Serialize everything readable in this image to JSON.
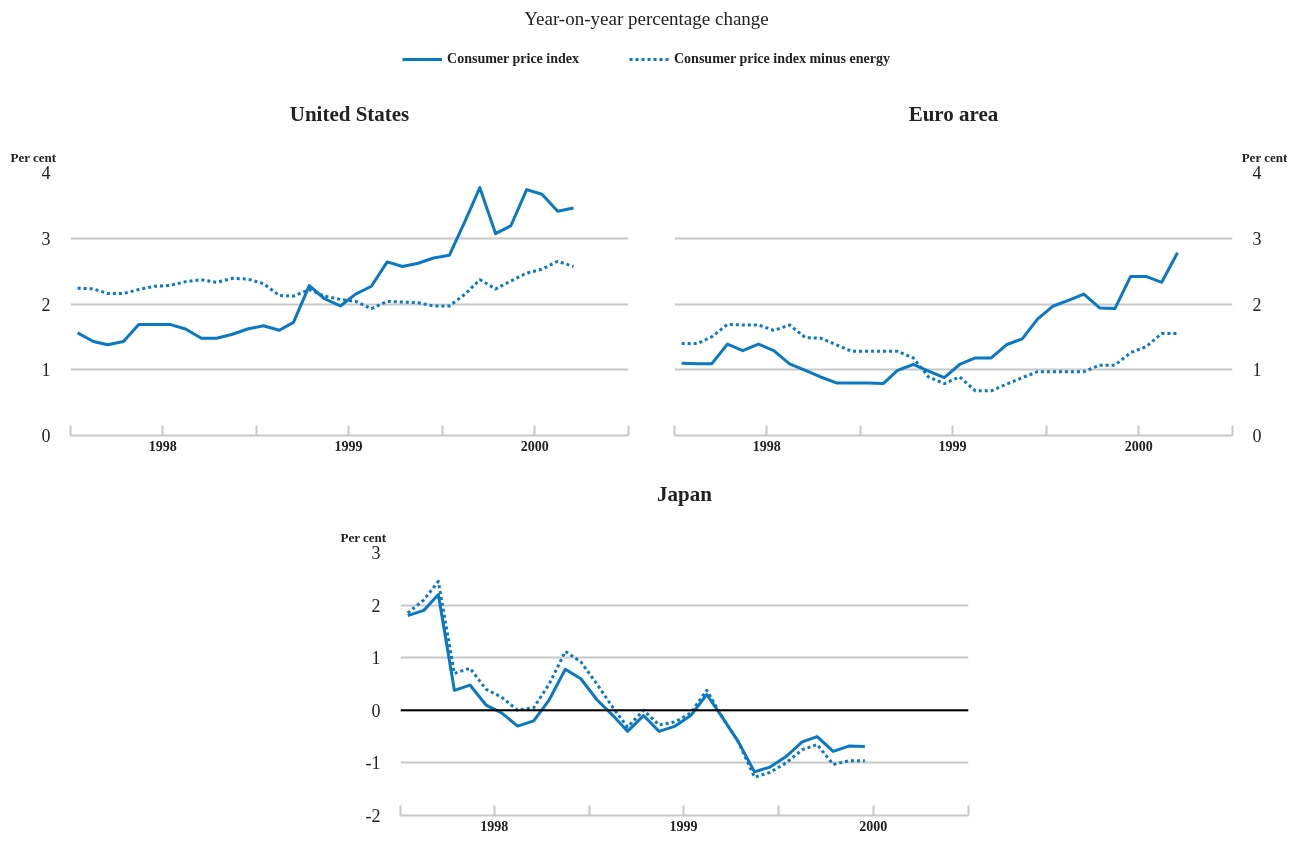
{
  "chart_data": [
    {
      "type": "line",
      "title": "United States",
      "subtitle": "Year-on-year percentage change",
      "ylabel": "Per cent",
      "legend": "top",
      "grid": "y",
      "x": [
        "1998-01-15",
        "1998-02-15",
        "1998-03-15",
        "1998-04-15",
        "1998-05-15",
        "1998-06-15",
        "1998-07-15",
        "1998-08-15",
        "1998-09-15",
        "1998-10-15",
        "1998-11-15",
        "1998-12-15",
        "1999-01-15",
        "1999-02-15",
        "1999-03-15",
        "1999-04-15",
        "1999-05-15",
        "1999-06-15",
        "1999-07-15",
        "1999-08-15",
        "1999-09-15",
        "1999-10-15",
        "1999-11-15",
        "1999-12-15",
        "2000-01-15",
        "2000-02-15",
        "2000-03-15",
        "2000-04-15",
        "2000-05-15",
        "2000-06-15",
        "2000-07-15",
        "2000-08-15",
        "2000-09-15"
      ],
      "xlim": [
        "1998-01-01",
        "2001-01-01"
      ],
      "xticks": [
        {
          "value": "1998-01-01",
          "label": null
        },
        {
          "value": "1998-07-01",
          "label": "1998"
        },
        {
          "value": "1999-01-01",
          "label": null
        },
        {
          "value": "1999-07-01",
          "label": "1999"
        },
        {
          "value": "2000-01-01",
          "label": null
        },
        {
          "value": "2000-07-01",
          "label": "2000"
        },
        {
          "value": "2001-01-01",
          "label": null
        }
      ],
      "ylim": [
        0,
        4
      ],
      "yticks": [
        0,
        1,
        2,
        3,
        4
      ],
      "series": [
        {
          "name": "Consumer price index",
          "color": "#0a78c2",
          "line_style": "solid",
          "values": [
            1.56,
            1.43,
            1.38,
            1.43,
            1.69,
            1.69,
            1.69,
            1.62,
            1.48,
            1.48,
            1.54,
            1.62,
            1.67,
            1.6,
            1.72,
            2.28,
            2.08,
            1.97,
            2.15,
            2.27,
            2.64,
            2.57,
            2.62,
            2.7,
            2.74,
            3.26,
            3.77,
            3.07,
            3.19,
            3.74,
            3.67,
            3.41,
            3.46
          ]
        },
        {
          "name": "Consumer price index minus energy",
          "color": "#0a78c2",
          "line_style": "dotted",
          "values": [
            2.24,
            2.23,
            2.16,
            2.16,
            2.22,
            2.27,
            2.28,
            2.34,
            2.37,
            2.33,
            2.39,
            2.38,
            2.31,
            2.13,
            2.12,
            2.22,
            2.12,
            2.07,
            2.04,
            1.93,
            2.04,
            2.03,
            2.02,
            1.97,
            1.97,
            2.15,
            2.37,
            2.23,
            2.35,
            2.47,
            2.53,
            2.65,
            2.57
          ]
        }
      ]
    },
    {
      "type": "line",
      "title": "Euro area",
      "y2label": "Per cent",
      "grid": "y",
      "x": [
        "1998-01-15",
        "1998-02-15",
        "1998-03-15",
        "1998-04-15",
        "1998-05-15",
        "1998-06-15",
        "1998-07-15",
        "1998-08-15",
        "1998-09-15",
        "1998-10-15",
        "1998-11-15",
        "1998-12-15",
        "1999-01-15",
        "1999-02-15",
        "1999-03-15",
        "1999-04-15",
        "1999-05-15",
        "1999-06-15",
        "1999-07-15",
        "1999-08-15",
        "1999-09-15",
        "1999-10-15",
        "1999-11-15",
        "1999-12-15",
        "2000-01-15",
        "2000-02-15",
        "2000-03-15",
        "2000-04-15",
        "2000-05-15",
        "2000-06-15",
        "2000-07-15",
        "2000-08-15",
        "2000-09-15"
      ],
      "xlim": [
        "1998-01-01",
        "2001-01-01"
      ],
      "xticks": [
        {
          "value": "1998-01-01",
          "label": null
        },
        {
          "value": "1998-07-01",
          "label": "1998"
        },
        {
          "value": "1999-01-01",
          "label": null
        },
        {
          "value": "1999-07-01",
          "label": "1999"
        },
        {
          "value": "2000-01-01",
          "label": null
        },
        {
          "value": "2000-07-01",
          "label": "2000"
        },
        {
          "value": "2001-01-01",
          "label": null
        }
      ],
      "y2lim": [
        0,
        4
      ],
      "y2ticks": [
        0,
        1,
        2,
        3,
        4
      ],
      "series": [
        {
          "color": "#0a78c2",
          "line_style": "solid",
          "axis": "y2",
          "values": [
            1.1,
            1.09,
            1.09,
            1.39,
            1.29,
            1.39,
            1.29,
            1.09,
            0.99,
            0.89,
            0.8,
            0.8,
            0.8,
            0.79,
            0.99,
            1.08,
            0.98,
            0.88,
            1.08,
            1.18,
            1.18,
            1.38,
            1.47,
            1.77,
            1.97,
            2.06,
            2.15,
            1.94,
            1.93,
            2.42,
            2.42,
            2.33,
            2.78
          ]
        },
        {
          "color": "#0a78c2",
          "line_style": "dotted",
          "axis": "y2",
          "values": [
            1.4,
            1.4,
            1.5,
            1.69,
            1.68,
            1.68,
            1.6,
            1.68,
            1.49,
            1.48,
            1.38,
            1.28,
            1.28,
            1.28,
            1.28,
            1.18,
            0.89,
            0.79,
            0.89,
            0.68,
            0.68,
            0.78,
            0.88,
            0.97,
            0.97,
            0.97,
            0.97,
            1.07,
            1.07,
            1.26,
            1.35,
            1.55,
            1.55
          ]
        }
      ]
    },
    {
      "type": "line",
      "title": "Japan",
      "ylabel": "Per cent",
      "grid": "y",
      "x": [
        "1998-01-15",
        "1998-02-15",
        "1998-03-15",
        "1998-04-15",
        "1998-05-15",
        "1998-06-15",
        "1998-07-15",
        "1998-08-15",
        "1998-09-15",
        "1998-10-15",
        "1998-11-15",
        "1998-12-15",
        "1999-01-15",
        "1999-02-15",
        "1999-03-15",
        "1999-04-15",
        "1999-05-15",
        "1999-06-15",
        "1999-07-15",
        "1999-08-15",
        "1999-09-15",
        "1999-10-15",
        "1999-11-15",
        "1999-12-15",
        "2000-01-15",
        "2000-02-15",
        "2000-03-15",
        "2000-04-15",
        "2000-05-15",
        "2000-06-15"
      ],
      "xlim": [
        "1998-01-01",
        "2001-01-01"
      ],
      "xticks": [
        {
          "value": "1998-01-01",
          "label": null
        },
        {
          "value": "1998-07-01",
          "label": "1998"
        },
        {
          "value": "1999-01-01",
          "label": null
        },
        {
          "value": "1999-07-01",
          "label": "1999"
        },
        {
          "value": "2000-01-01",
          "label": null
        },
        {
          "value": "2000-07-01",
          "label": "2000"
        },
        {
          "value": "2001-01-01",
          "label": null
        }
      ],
      "ylim": [
        -2,
        3
      ],
      "yticks": [
        -2,
        -1,
        0,
        1,
        2,
        3
      ],
      "ref_lines": [
        {
          "axis": "y",
          "value": 0,
          "color": "#000000"
        }
      ],
      "series": [
        {
          "color": "#0a78c2",
          "line_style": "solid",
          "values": [
            1.8,
            1.9,
            2.2,
            0.38,
            0.48,
            0.1,
            -0.05,
            -0.3,
            -0.2,
            0.2,
            0.78,
            0.6,
            0.2,
            -0.1,
            -0.4,
            -0.1,
            -0.4,
            -0.3,
            -0.1,
            0.3,
            -0.15,
            -0.6,
            -1.17,
            -1.08,
            -0.88,
            -0.6,
            -0.5,
            -0.78,
            -0.68,
            -0.69
          ]
        },
        {
          "color": "#0a78c2",
          "line_style": "dotted",
          "values": [
            1.85,
            2.1,
            2.45,
            0.7,
            0.8,
            0.4,
            0.25,
            0.0,
            0.05,
            0.5,
            1.12,
            0.92,
            0.5,
            0.05,
            -0.32,
            0.0,
            -0.28,
            -0.22,
            -0.05,
            0.38,
            -0.15,
            -0.6,
            -1.27,
            -1.18,
            -1.0,
            -0.75,
            -0.65,
            -1.03,
            -0.96,
            -0.96
          ]
        }
      ]
    }
  ]
}
